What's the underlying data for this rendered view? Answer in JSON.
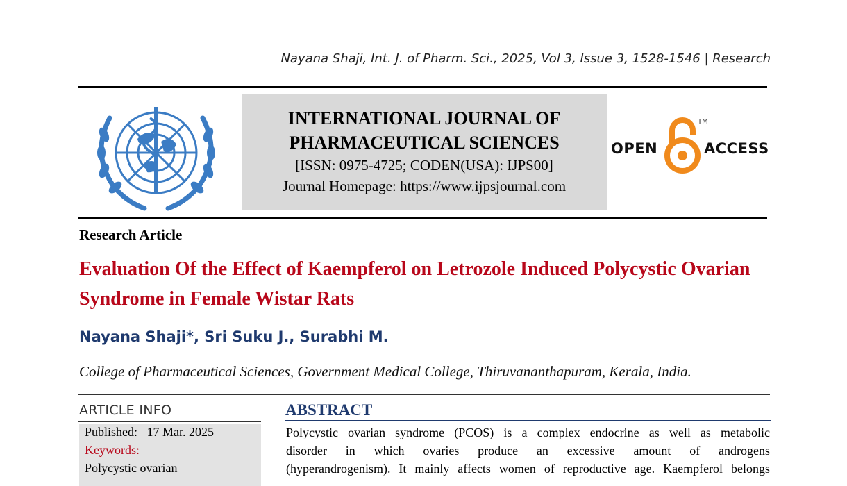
{
  "running_head": "Nayana Shaji, Int. J. of Pharm. Sci., 2025, Vol 3, Issue 3, 1528-1546 | Research",
  "journal": {
    "name_line1": "INTERNATIONAL JOURNAL OF",
    "name_line2": "PHARMACEUTICAL SCIENCES",
    "issn_line": "[ISSN: 0975-4725; CODEN(USA): IJPS00]",
    "homepage_line": "Journal Homepage: https://www.ijpsjournal.com"
  },
  "open_access": {
    "left": "OPEN",
    "right": "ACCESS",
    "tm": "TM",
    "color": "#f08a1c"
  },
  "article": {
    "type": "Research Article",
    "title": "Evaluation Of the Effect of Kaempferol on Letrozole Induced Polycystic Ovarian Syndrome in Female Wistar Rats",
    "authors": "Nayana Shaji*, Sri Suku J., Surabhi M.",
    "affiliation": "College of Pharmaceutical Sciences, Government Medical College, Thiruvananthapuram, Kerala, India."
  },
  "article_info": {
    "heading": "ARTICLE INFO",
    "published_label": "Published:",
    "published_date": "17 Mar. 2025",
    "keywords_label": "Keywords:",
    "keyword_1": "Polycystic ovarian"
  },
  "abstract": {
    "heading": "ABSTRACT",
    "line1": "Polycystic ovarian syndrome (PCOS) is a complex endocrine as well as metabolic",
    "line2": "disorder in which ovaries produce an excessive amount of androgens",
    "line3": "(hyperandrogenism). It mainly affects women of reproductive age.  Kaempferol belongs"
  },
  "colors": {
    "title_red": "#b8071a",
    "author_blue": "#1f3a6e",
    "logo_blue": "#3b7cc4",
    "box_gray": "#d9d9d9"
  }
}
